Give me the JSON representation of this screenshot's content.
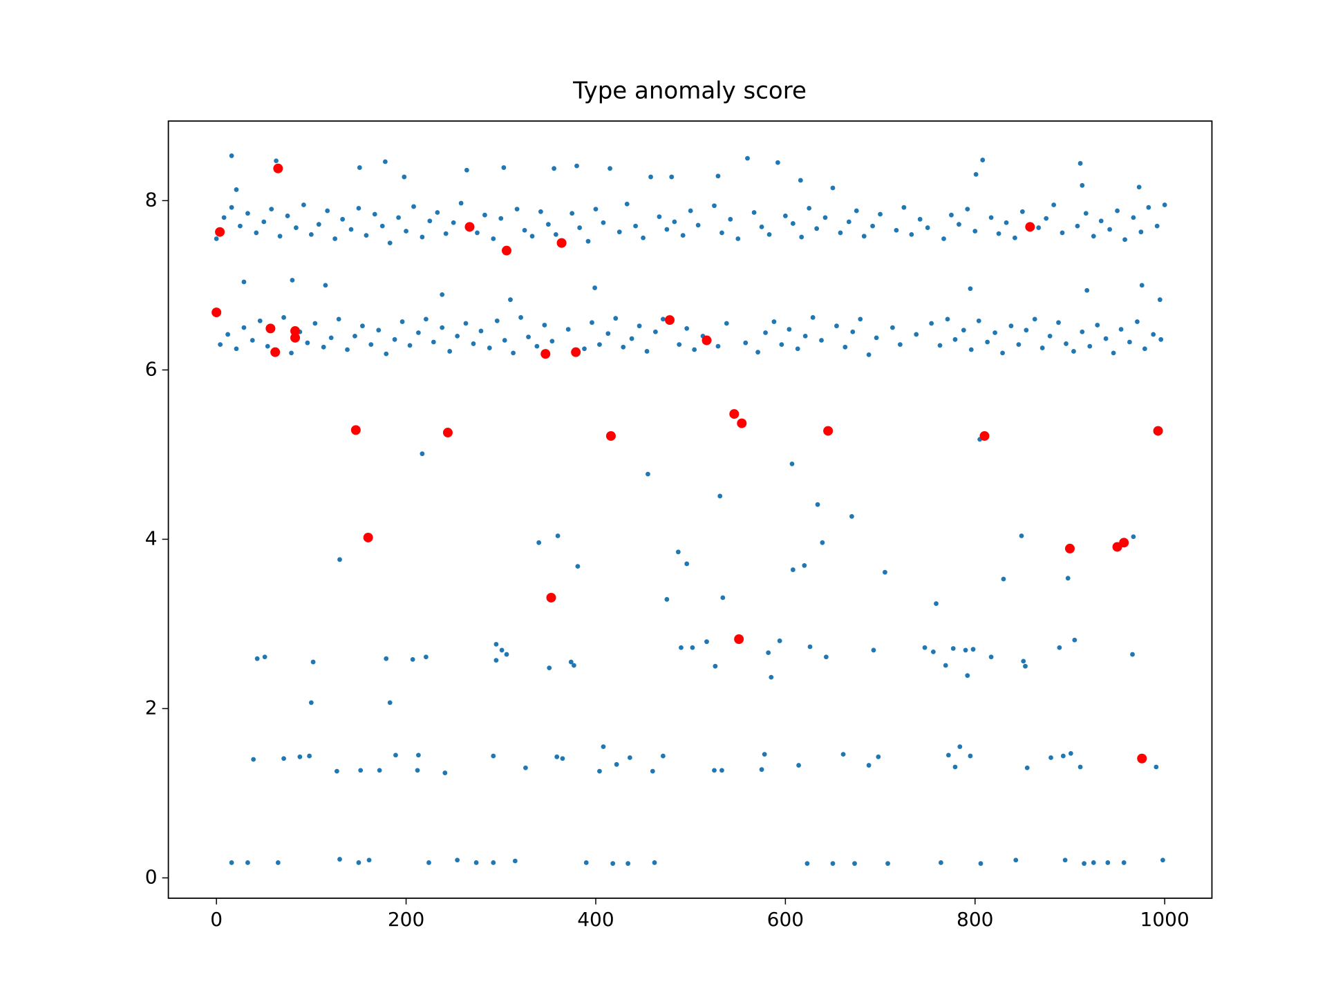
{
  "chart_data": {
    "type": "scatter",
    "title": "Type anomaly score",
    "xlim": [
      -50.7,
      1049.8
    ],
    "ylim": [
      -0.24,
      8.94
    ],
    "xticks": [
      0,
      200,
      400,
      600,
      800,
      1000
    ],
    "yticks": [
      0,
      2,
      4,
      6,
      8
    ],
    "series": [
      {
        "color": "#1f77b4",
        "x": [
          0,
          8,
          16,
          25,
          33,
          42,
          50,
          58,
          67,
          75,
          84,
          92,
          100,
          108,
          117,
          125,
          133,
          142,
          150,
          158,
          167,
          175,
          183,
          192,
          200,
          208,
          217,
          225,
          233,
          242,
          250,
          258,
          275,
          283,
          292,
          300,
          317,
          325,
          333,
          342,
          350,
          358,
          375,
          383,
          392,
          400,
          408,
          425,
          433,
          442,
          450,
          467,
          475,
          483,
          492,
          500,
          508,
          525,
          533,
          542,
          550,
          567,
          575,
          583,
          600,
          608,
          617,
          625,
          633,
          642,
          658,
          667,
          675,
          683,
          692,
          700,
          717,
          725,
          733,
          742,
          750,
          767,
          775,
          783,
          792,
          800,
          817,
          825,
          833,
          842,
          850,
          867,
          875,
          883,
          892,
          908,
          917,
          925,
          933,
          942,
          950,
          958,
          967,
          975,
          983,
          992,
          1000,
          4,
          12,
          21,
          29,
          38,
          46,
          54,
          71,
          79,
          88,
          96,
          104,
          113,
          121,
          129,
          138,
          146,
          154,
          163,
          171,
          179,
          188,
          196,
          204,
          213,
          221,
          229,
          238,
          246,
          254,
          263,
          271,
          279,
          288,
          296,
          304,
          313,
          321,
          329,
          338,
          346,
          354,
          371,
          388,
          396,
          404,
          413,
          421,
          429,
          438,
          446,
          454,
          463,
          471,
          488,
          496,
          504,
          513,
          529,
          538,
          558,
          571,
          579,
          588,
          596,
          604,
          613,
          621,
          629,
          638,
          654,
          663,
          671,
          679,
          688,
          696,
          713,
          721,
          738,
          754,
          763,
          771,
          779,
          788,
          796,
          804,
          813,
          821,
          829,
          838,
          846,
          854,
          863,
          871,
          879,
          888,
          896,
          904,
          913,
          921,
          929,
          938,
          946,
          954,
          963,
          971,
          979,
          988,
          996,
          16,
          33,
          65,
          130,
          150,
          161,
          224,
          254,
          274,
          292,
          315,
          390,
          418,
          434,
          462,
          623,
          650,
          673,
          708,
          764,
          806,
          843,
          895,
          915,
          925,
          940,
          957,
          998,
          39,
          71,
          88,
          98,
          127,
          152,
          172,
          189,
          212,
          213,
          241,
          292,
          326,
          359,
          365,
          404,
          408,
          422,
          436,
          460,
          471,
          525,
          533,
          575,
          578,
          614,
          661,
          688,
          698,
          772,
          779,
          784,
          795,
          855,
          880,
          893,
          901,
          911,
          991,
          43,
          51,
          102,
          100,
          183,
          179,
          207,
          221,
          295,
          301,
          306,
          295,
          351,
          374,
          377,
          490,
          502,
          517,
          526,
          582,
          585,
          594,
          626,
          643,
          693,
          747,
          756,
          769,
          777,
          790,
          792,
          798,
          817,
          851,
          853,
          889,
          905,
          966,
          130,
          217,
          340,
          360,
          381,
          455,
          475,
          487,
          496,
          531,
          534,
          607,
          608,
          620,
          634,
          639,
          670,
          705,
          759,
          805,
          830,
          849,
          898,
          967,
          995,
          29,
          80,
          115,
          238,
          310,
          399,
          795,
          918,
          976,
          801,
          808,
          911,
          913,
          973,
          16,
          21,
          63,
          151,
          178,
          198,
          264,
          303,
          356,
          380,
          415,
          458,
          480,
          529,
          560,
          592,
          616,
          650
        ],
        "values": [
          7.55,
          7.8,
          7.92,
          7.7,
          7.85,
          7.62,
          7.75,
          7.9,
          7.58,
          7.82,
          7.68,
          7.95,
          7.6,
          7.72,
          7.88,
          7.55,
          7.78,
          7.66,
          7.91,
          7.59,
          7.84,
          7.7,
          7.5,
          7.8,
          7.64,
          7.93,
          7.57,
          7.76,
          7.86,
          7.61,
          7.74,
          7.97,
          7.62,
          7.83,
          7.55,
          7.79,
          7.9,
          7.65,
          7.58,
          7.87,
          7.72,
          7.6,
          7.85,
          7.68,
          7.52,
          7.9,
          7.74,
          7.63,
          7.96,
          7.7,
          7.56,
          7.81,
          7.66,
          7.75,
          7.59,
          7.88,
          7.71,
          7.94,
          7.62,
          7.78,
          7.55,
          7.86,
          7.69,
          7.6,
          7.82,
          7.73,
          7.57,
          7.91,
          7.67,
          7.8,
          7.62,
          7.75,
          7.88,
          7.58,
          7.7,
          7.84,
          7.65,
          7.92,
          7.6,
          7.78,
          7.68,
          7.55,
          7.83,
          7.72,
          7.9,
          7.64,
          7.8,
          7.61,
          7.74,
          7.56,
          7.87,
          7.68,
          7.79,
          7.95,
          7.62,
          7.7,
          7.85,
          7.58,
          7.76,
          7.66,
          7.88,
          7.54,
          7.8,
          7.63,
          7.92,
          7.7,
          7.95,
          6.3,
          6.42,
          6.25,
          6.5,
          6.35,
          6.58,
          6.28,
          6.62,
          6.2,
          6.45,
          6.32,
          6.55,
          6.27,
          6.38,
          6.6,
          6.24,
          6.4,
          6.52,
          6.3,
          6.47,
          6.19,
          6.36,
          6.57,
          6.29,
          6.44,
          6.6,
          6.33,
          6.5,
          6.22,
          6.4,
          6.55,
          6.31,
          6.46,
          6.26,
          6.58,
          6.35,
          6.2,
          6.62,
          6.39,
          6.28,
          6.53,
          6.34,
          6.48,
          6.25,
          6.56,
          6.3,
          6.43,
          6.61,
          6.27,
          6.37,
          6.52,
          6.22,
          6.45,
          6.6,
          6.3,
          6.49,
          6.24,
          6.4,
          6.28,
          6.55,
          6.32,
          6.21,
          6.44,
          6.57,
          6.3,
          6.48,
          6.25,
          6.4,
          6.62,
          6.35,
          6.52,
          6.27,
          6.45,
          6.6,
          6.18,
          6.38,
          6.5,
          6.3,
          6.42,
          6.55,
          6.29,
          6.6,
          6.36,
          6.47,
          6.24,
          6.58,
          6.33,
          6.44,
          6.2,
          6.52,
          6.3,
          6.47,
          6.6,
          6.26,
          6.4,
          6.56,
          6.31,
          6.22,
          6.45,
          6.28,
          6.53,
          6.37,
          6.2,
          6.48,
          6.33,
          6.57,
          6.25,
          6.42,
          6.36,
          0.18,
          0.18,
          0.18,
          0.22,
          0.18,
          0.21,
          0.18,
          0.21,
          0.18,
          0.18,
          0.2,
          0.18,
          0.17,
          0.17,
          0.18,
          0.17,
          0.17,
          0.17,
          0.17,
          0.18,
          0.17,
          0.21,
          0.21,
          0.17,
          0.18,
          0.18,
          0.18,
          0.21,
          1.4,
          1.41,
          1.43,
          1.44,
          1.26,
          1.27,
          1.27,
          1.45,
          1.27,
          1.45,
          1.24,
          1.44,
          1.3,
          1.43,
          1.41,
          1.26,
          1.55,
          1.34,
          1.42,
          1.26,
          1.44,
          1.27,
          1.27,
          1.28,
          1.46,
          1.33,
          1.46,
          1.33,
          1.43,
          1.45,
          1.31,
          1.55,
          1.44,
          1.3,
          1.42,
          1.44,
          1.47,
          1.31,
          1.31,
          2.59,
          2.61,
          2.55,
          2.07,
          2.07,
          2.59,
          2.58,
          2.61,
          2.76,
          2.69,
          2.64,
          2.57,
          2.48,
          2.55,
          2.51,
          2.72,
          2.72,
          2.79,
          2.5,
          2.66,
          2.37,
          2.8,
          2.73,
          2.61,
          2.69,
          2.72,
          2.67,
          2.51,
          2.71,
          2.69,
          2.39,
          2.7,
          2.61,
          2.56,
          2.5,
          2.72,
          2.81,
          2.64,
          3.76,
          5.01,
          3.96,
          4.04,
          3.68,
          4.77,
          3.29,
          3.85,
          3.71,
          4.51,
          3.31,
          4.89,
          3.64,
          3.69,
          4.41,
          3.96,
          4.27,
          3.61,
          3.24,
          5.18,
          3.53,
          4.04,
          3.54,
          4.03,
          6.83,
          7.04,
          7.06,
          7.0,
          6.89,
          6.83,
          6.97,
          6.96,
          6.94,
          7.0,
          8.31,
          8.48,
          8.44,
          8.18,
          8.16,
          8.53,
          8.13,
          8.47,
          8.39,
          8.46,
          8.28,
          8.36,
          8.39,
          8.38,
          8.41,
          8.38,
          8.28,
          8.28,
          8.29,
          8.5,
          8.45,
          8.24,
          8.15
        ]
      },
      {
        "color": "#ff0000",
        "x": [
          3.6,
          65,
          0,
          57,
          62,
          83,
          83,
          267,
          306,
          364,
          147,
          244,
          160,
          347,
          379,
          478,
          517,
          416,
          353,
          546,
          554,
          551,
          645,
          810,
          858,
          900,
          950,
          957,
          976,
          993
        ],
        "values": [
          7.63,
          8.38,
          6.68,
          6.49,
          6.21,
          6.46,
          6.38,
          7.69,
          7.41,
          7.5,
          5.29,
          5.26,
          4.02,
          6.19,
          6.21,
          6.59,
          6.35,
          5.22,
          3.31,
          5.48,
          5.37,
          2.82,
          5.28,
          5.22,
          7.69,
          3.89,
          3.91,
          3.96,
          1.41,
          5.28
        ]
      }
    ]
  }
}
